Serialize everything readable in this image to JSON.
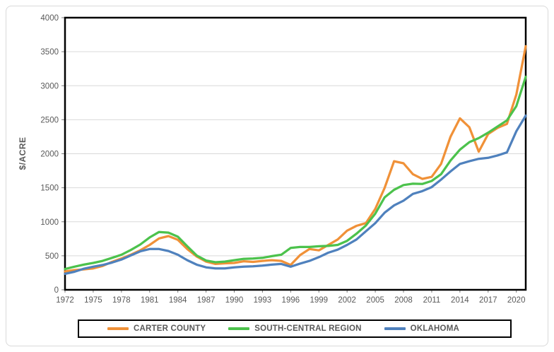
{
  "chart_data": {
    "type": "line",
    "title": "",
    "ylabel": "$/ACRE",
    "xlabel": "",
    "years": [
      1972,
      1973,
      1974,
      1975,
      1976,
      1977,
      1978,
      1979,
      1980,
      1981,
      1982,
      1983,
      1984,
      1985,
      1986,
      1987,
      1988,
      1989,
      1990,
      1991,
      1992,
      1993,
      1994,
      1995,
      1996,
      1997,
      1998,
      1999,
      2000,
      2001,
      2002,
      2003,
      2004,
      2005,
      2006,
      2007,
      2008,
      2009,
      2010,
      2011,
      2012,
      2013,
      2014,
      2015,
      2016,
      2017,
      2018,
      2019,
      2020,
      2021
    ],
    "x_tick_labels": [
      1972,
      1975,
      1978,
      1981,
      1984,
      1987,
      1990,
      1993,
      1996,
      1999,
      2002,
      2005,
      2008,
      2011,
      2014,
      2017,
      2020
    ],
    "y_tick_labels": [
      0,
      500,
      1000,
      1500,
      2000,
      2500,
      3000,
      3500,
      4000
    ],
    "ylim": [
      0,
      4000
    ],
    "xlim": [
      1972,
      2021
    ],
    "grid": "horizontal",
    "legend_position": "bottom",
    "series": [
      {
        "name": "CARTER COUNTY",
        "color": "#F09138",
        "values": [
          270,
          290,
          300,
          315,
          350,
          410,
          460,
          515,
          580,
          660,
          755,
          790,
          735,
          600,
          490,
          415,
          380,
          390,
          395,
          420,
          410,
          425,
          435,
          425,
          365,
          510,
          600,
          580,
          660,
          740,
          870,
          940,
          980,
          1190,
          1500,
          1890,
          1860,
          1700,
          1630,
          1660,
          1850,
          2250,
          2520,
          2390,
          2030,
          2290,
          2380,
          2440,
          2870,
          3580
        ]
      },
      {
        "name": "SOUTH-CENTRAL REGION",
        "color": "#4CC24C",
        "values": [
          305,
          340,
          370,
          395,
          425,
          470,
          515,
          585,
          665,
          770,
          850,
          840,
          780,
          640,
          505,
          430,
          405,
          415,
          435,
          455,
          460,
          470,
          495,
          515,
          615,
          630,
          630,
          640,
          645,
          660,
          720,
          825,
          945,
          1120,
          1360,
          1470,
          1540,
          1560,
          1555,
          1600,
          1700,
          1900,
          2060,
          2170,
          2230,
          2310,
          2400,
          2490,
          2700,
          3130
        ]
      },
      {
        "name": "OKLAHOMA",
        "color": "#4F81BD",
        "values": [
          235,
          265,
          310,
          340,
          365,
          400,
          445,
          505,
          565,
          600,
          600,
          570,
          515,
          435,
          370,
          330,
          315,
          315,
          330,
          340,
          345,
          355,
          370,
          380,
          340,
          385,
          425,
          480,
          545,
          590,
          660,
          740,
          860,
          980,
          1135,
          1240,
          1310,
          1410,
          1450,
          1510,
          1620,
          1740,
          1850,
          1890,
          1925,
          1940,
          1975,
          2020,
          2330,
          2560
        ]
      }
    ],
    "style": {
      "axis_color": "#000000",
      "gridline_color": "#d9d9d9",
      "tick_text_color": "#595959",
      "plot_background": "#ffffff"
    }
  }
}
